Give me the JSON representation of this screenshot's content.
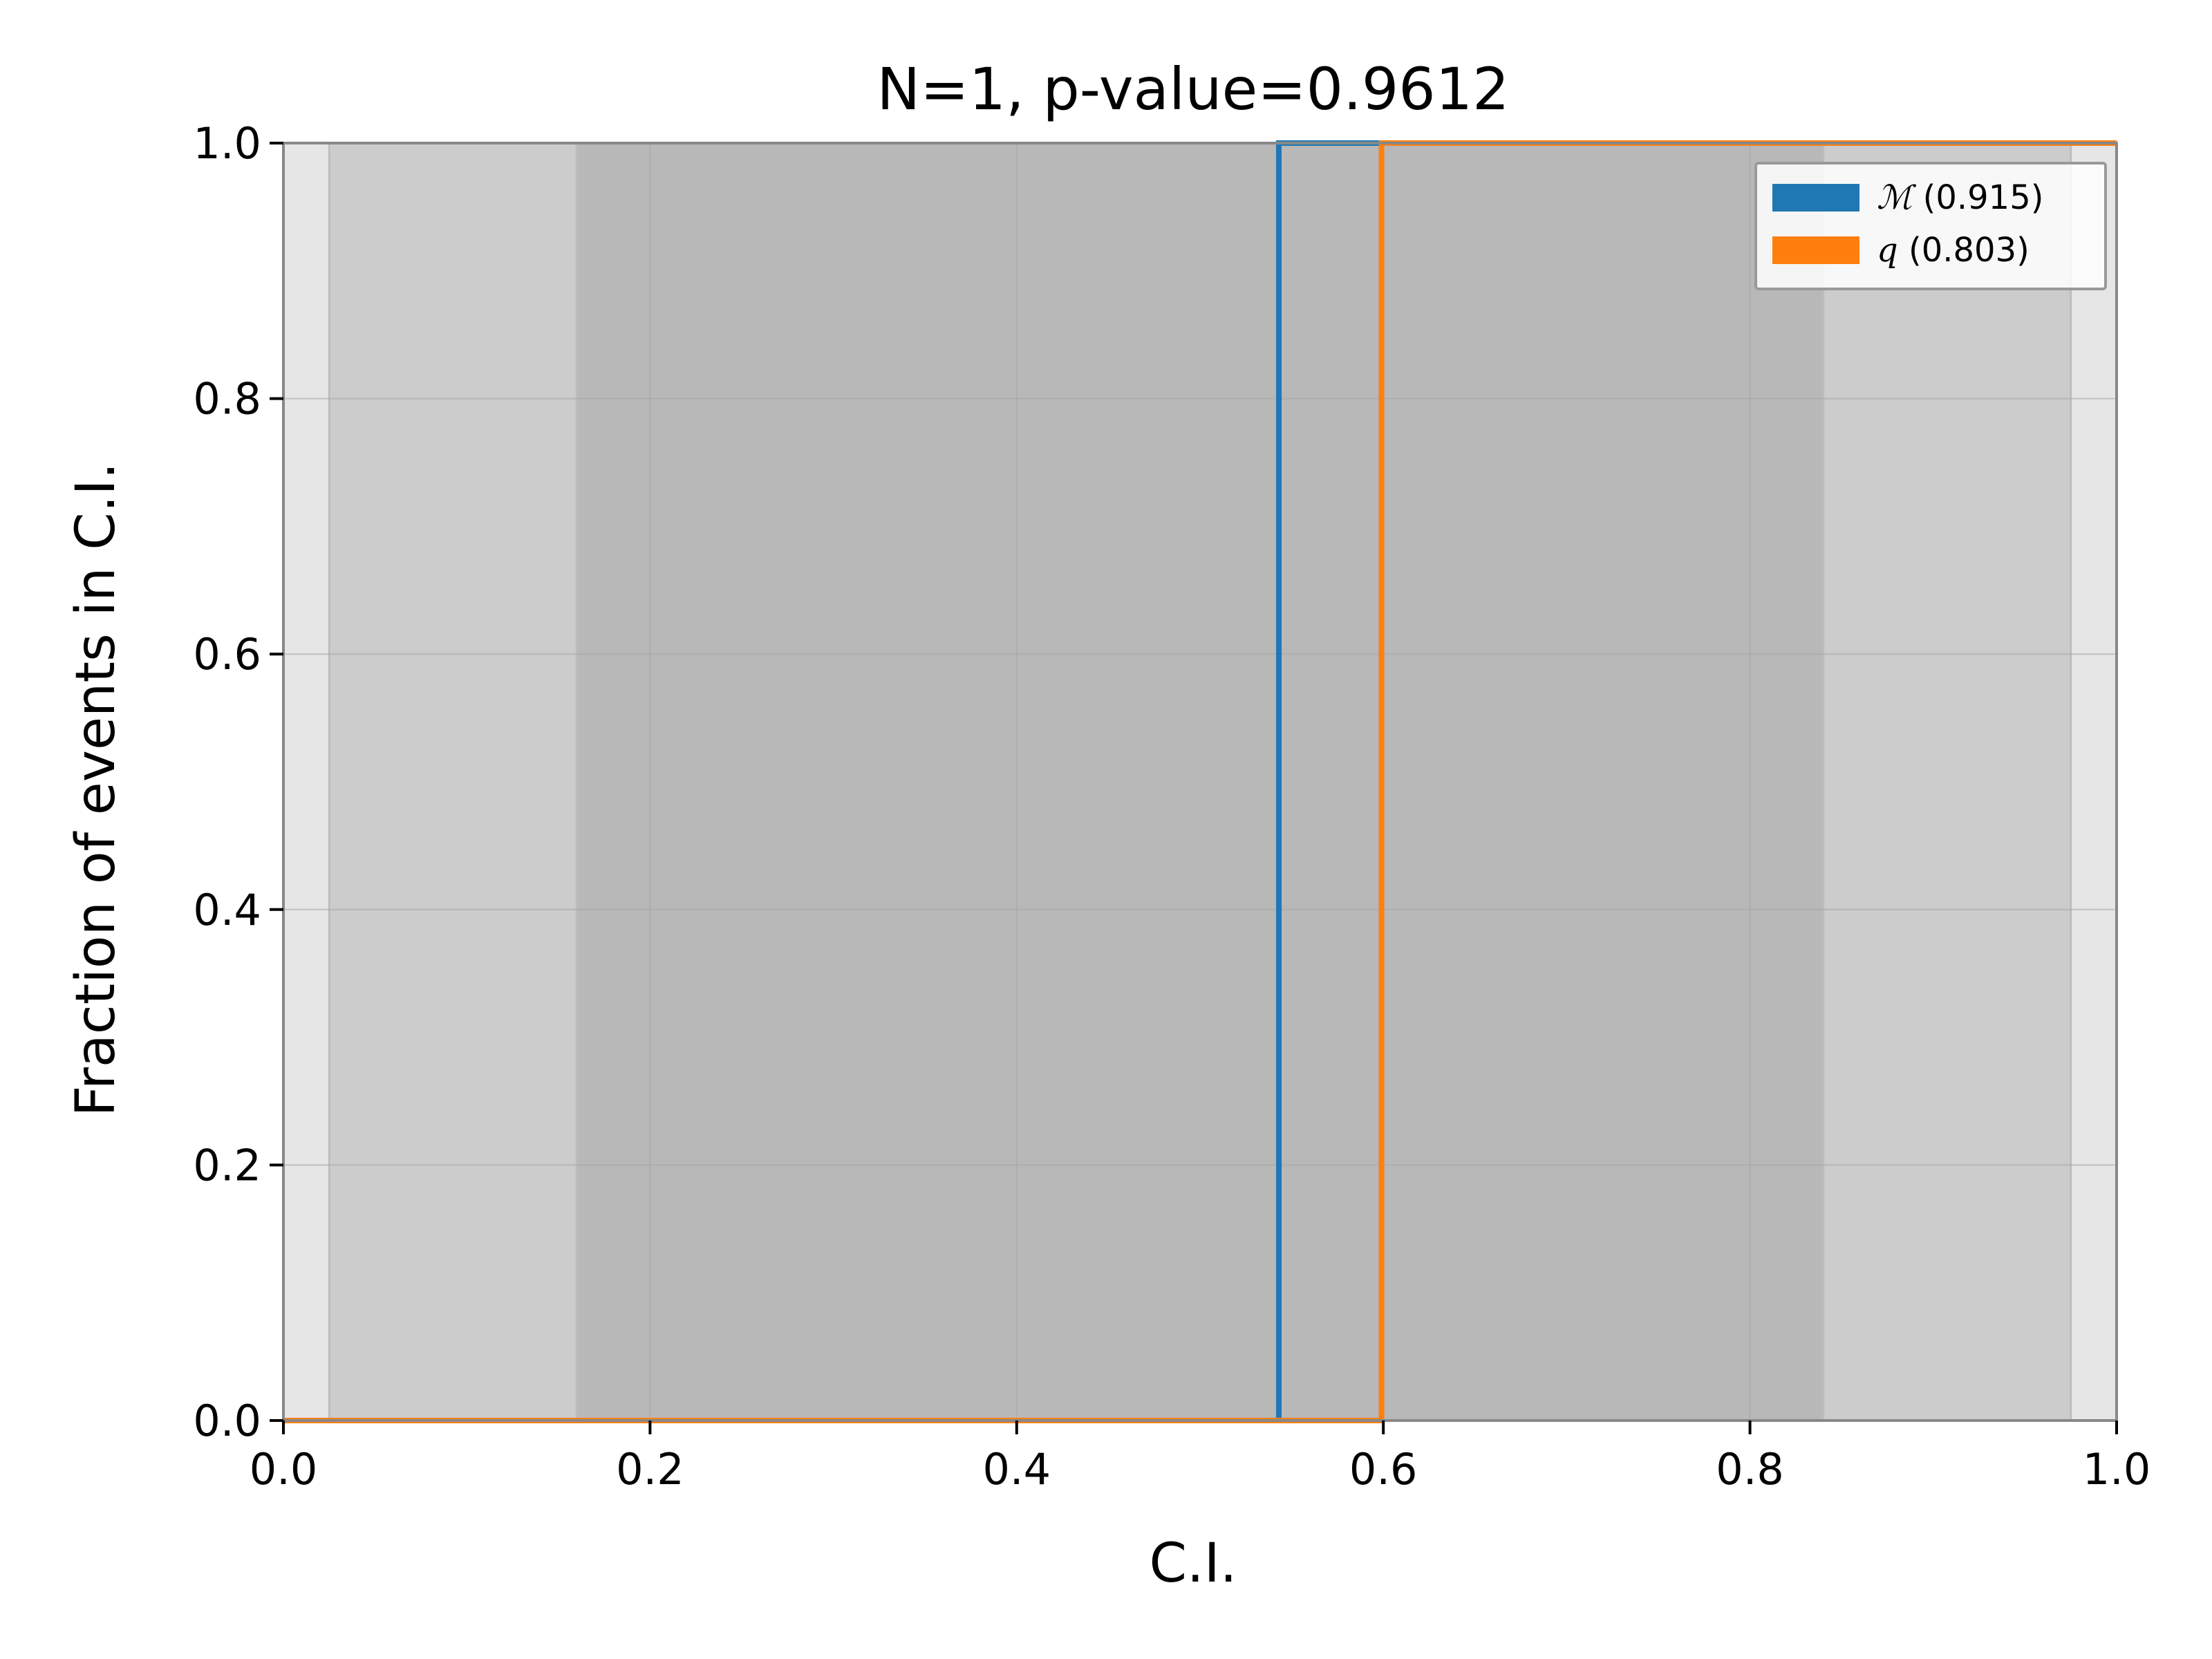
{
  "chart_data": {
    "type": "line",
    "title": "N=1, p-value=0.9612",
    "xlabel": "C.I.",
    "ylabel": "Fraction of events in C.I.",
    "xlim": [
      0.0,
      1.0
    ],
    "ylim": [
      0.0,
      1.0
    ],
    "xticks": [
      0.0,
      0.2,
      0.4,
      0.6,
      0.8,
      1.0
    ],
    "xtick_labels": [
      "0.0",
      "0.2",
      "0.4",
      "0.6",
      "0.8",
      "1.0"
    ],
    "yticks": [
      0.0,
      0.2,
      0.4,
      0.6,
      0.8,
      1.0
    ],
    "ytick_labels": [
      "0.0",
      "0.2",
      "0.4",
      "0.6",
      "0.8",
      "1.0"
    ],
    "grid": true,
    "legend_position": "top-right",
    "confidence_bands": [
      {
        "lo": 0.0,
        "hi": 1.0,
        "color": "#e6e6e6"
      },
      {
        "lo": 0.025,
        "hi": 0.975,
        "color": "#cccccc"
      },
      {
        "lo": 0.16,
        "hi": 0.84,
        "color": "#b8b8b8"
      }
    ],
    "series": [
      {
        "symbol": "ℳ",
        "value": "(0.915)",
        "color": "#1f77b4",
        "x": [
          0.0,
          0.543,
          0.543,
          1.0
        ],
        "y": [
          0.0,
          0.0,
          1.0,
          1.0
        ]
      },
      {
        "symbol": "q",
        "value": "(0.803)",
        "color": "#ff7f0e",
        "x": [
          0.0,
          0.599,
          0.599,
          1.0
        ],
        "y": [
          0.0,
          0.0,
          1.0,
          1.0
        ]
      }
    ]
  }
}
